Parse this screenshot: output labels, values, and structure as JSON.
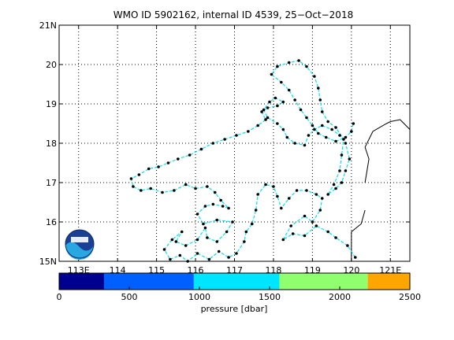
{
  "title": "WMO ID 5902162, internal ID 4539, 25−Oct−2018",
  "map": {
    "lon_range": [
      112.5,
      121.5
    ],
    "lat_range": [
      15,
      21
    ],
    "lon_ticks": [
      {
        "value": 113,
        "label": "113E"
      },
      {
        "value": 114,
        "label": "114"
      },
      {
        "value": 115,
        "label": "115"
      },
      {
        "value": 116,
        "label": "116"
      },
      {
        "value": 117,
        "label": "117"
      },
      {
        "value": 118,
        "label": "118"
      },
      {
        "value": 119,
        "label": "119"
      },
      {
        "value": 120,
        "label": "120"
      },
      {
        "value": 121,
        "label": "121E"
      }
    ],
    "lat_ticks": [
      {
        "value": 15,
        "label": "15N"
      },
      {
        "value": 16,
        "label": "16"
      },
      {
        "value": 17,
        "label": "17"
      },
      {
        "value": 18,
        "label": "18"
      },
      {
        "value": 19,
        "label": "19"
      },
      {
        "value": 20,
        "label": "20"
      },
      {
        "value": 21,
        "label": "21N"
      }
    ],
    "grid": true,
    "track_color": "#00e5ee",
    "point_color": "#000000",
    "coastline_color": "#000000",
    "coastline": [
      [
        120.35,
        17.0
      ],
      [
        120.45,
        17.6
      ],
      [
        120.35,
        17.9
      ],
      [
        120.55,
        18.3
      ],
      [
        120.9,
        18.5
      ],
      [
        121.0,
        18.55
      ],
      [
        121.25,
        18.6
      ],
      [
        121.5,
        18.35
      ]
    ],
    "coastline2": [
      [
        120.35,
        16.3
      ],
      [
        120.25,
        15.95
      ],
      [
        120.0,
        15.75
      ],
      [
        120.0,
        15.0
      ]
    ],
    "track": [
      [
        120.1,
        15.1
      ],
      [
        119.9,
        15.4
      ],
      [
        119.6,
        15.6
      ],
      [
        119.4,
        15.75
      ],
      [
        119.1,
        15.9
      ],
      [
        118.8,
        15.65
      ],
      [
        118.5,
        15.7
      ],
      [
        118.25,
        15.55
      ],
      [
        118.45,
        15.9
      ],
      [
        118.8,
        16.15
      ],
      [
        119.0,
        16.0
      ],
      [
        119.2,
        16.3
      ],
      [
        119.25,
        16.6
      ],
      [
        119.1,
        16.7
      ],
      [
        118.85,
        16.8
      ],
      [
        118.6,
        16.8
      ],
      [
        118.4,
        16.6
      ],
      [
        118.2,
        16.35
      ],
      [
        118.1,
        16.65
      ],
      [
        118.0,
        16.9
      ],
      [
        117.8,
        16.95
      ],
      [
        117.6,
        16.7
      ],
      [
        117.55,
        16.3
      ],
      [
        117.45,
        15.95
      ],
      [
        117.3,
        15.75
      ],
      [
        117.25,
        15.5
      ],
      [
        117.05,
        15.2
      ],
      [
        116.85,
        15.1
      ],
      [
        116.6,
        15.25
      ],
      [
        116.35,
        15.05
      ],
      [
        116.05,
        15.2
      ],
      [
        115.8,
        15.0
      ],
      [
        115.6,
        15.15
      ],
      [
        115.35,
        15.05
      ],
      [
        115.2,
        15.3
      ],
      [
        115.4,
        15.55
      ],
      [
        115.65,
        15.75
      ],
      [
        115.5,
        15.5
      ],
      [
        115.75,
        15.4
      ],
      [
        116.05,
        15.55
      ],
      [
        116.25,
        15.85
      ],
      [
        116.3,
        15.6
      ],
      [
        116.55,
        15.5
      ],
      [
        116.8,
        15.75
      ],
      [
        116.95,
        16.0
      ],
      [
        116.55,
        16.05
      ],
      [
        116.2,
        15.95
      ],
      [
        116.05,
        16.2
      ],
      [
        116.25,
        16.4
      ],
      [
        116.45,
        16.45
      ],
      [
        116.7,
        16.4
      ],
      [
        116.85,
        16.35
      ],
      [
        116.65,
        16.55
      ],
      [
        116.5,
        16.75
      ],
      [
        116.3,
        16.9
      ],
      [
        116.0,
        16.85
      ],
      [
        115.75,
        16.95
      ],
      [
        115.45,
        16.8
      ],
      [
        115.15,
        16.75
      ],
      [
        114.85,
        16.85
      ],
      [
        114.6,
        16.8
      ],
      [
        114.4,
        16.9
      ],
      [
        114.35,
        17.1
      ],
      [
        114.55,
        17.2
      ],
      [
        114.8,
        17.35
      ],
      [
        115.05,
        17.4
      ],
      [
        115.3,
        17.5
      ],
      [
        115.55,
        17.6
      ],
      [
        115.85,
        17.7
      ],
      [
        116.15,
        17.85
      ],
      [
        116.45,
        18.0
      ],
      [
        116.75,
        18.1
      ],
      [
        117.05,
        18.2
      ],
      [
        117.35,
        18.3
      ],
      [
        117.6,
        18.45
      ],
      [
        117.8,
        18.6
      ],
      [
        117.7,
        18.8
      ],
      [
        117.85,
        18.9
      ],
      [
        118.1,
        18.95
      ],
      [
        118.25,
        19.05
      ],
      [
        118.05,
        19.15
      ],
      [
        117.9,
        19.05
      ],
      [
        117.75,
        18.85
      ],
      [
        117.85,
        18.65
      ],
      [
        118.1,
        18.5
      ],
      [
        118.25,
        18.35
      ],
      [
        118.35,
        18.15
      ],
      [
        118.55,
        18.0
      ],
      [
        118.8,
        17.95
      ],
      [
        118.9,
        18.2
      ],
      [
        119.05,
        18.35
      ],
      [
        119.25,
        18.45
      ],
      [
        119.5,
        18.35
      ],
      [
        119.7,
        18.2
      ],
      [
        119.85,
        18.0
      ],
      [
        119.95,
        17.6
      ],
      [
        119.85,
        17.3
      ],
      [
        119.75,
        17.0
      ],
      [
        119.6,
        16.85
      ],
      [
        119.4,
        16.7
      ],
      [
        119.55,
        16.95
      ],
      [
        119.7,
        17.3
      ],
      [
        119.75,
        17.7
      ],
      [
        119.8,
        18.1
      ],
      [
        119.6,
        18.4
      ],
      [
        119.4,
        18.55
      ],
      [
        119.25,
        18.8
      ],
      [
        119.2,
        19.1
      ],
      [
        119.15,
        19.4
      ],
      [
        119.05,
        19.7
      ],
      [
        118.85,
        19.95
      ],
      [
        118.65,
        20.1
      ],
      [
        118.4,
        20.05
      ],
      [
        118.1,
        19.95
      ],
      [
        117.95,
        19.75
      ],
      [
        118.2,
        19.55
      ],
      [
        118.4,
        19.35
      ],
      [
        118.55,
        19.1
      ],
      [
        118.7,
        18.85
      ],
      [
        118.85,
        18.65
      ],
      [
        119.0,
        18.45
      ],
      [
        119.15,
        18.25
      ],
      [
        119.35,
        18.15
      ],
      [
        119.6,
        18.05
      ],
      [
        119.85,
        18.15
      ],
      [
        120.0,
        18.3
      ],
      [
        120.05,
        18.5
      ]
    ],
    "noaa_logo": "noaa-logo"
  },
  "colorbar": {
    "label": "pressure [dbar]",
    "ticks": [
      {
        "value": 0,
        "label": "0"
      },
      {
        "value": 500,
        "label": "500"
      },
      {
        "value": 1000,
        "label": "1000"
      },
      {
        "value": 1500,
        "label": "1500"
      },
      {
        "value": 2000,
        "label": "2000"
      },
      {
        "value": 2500,
        "label": "2500"
      }
    ],
    "range": [
      0,
      2500
    ],
    "segments": [
      {
        "from": 0,
        "to": 320,
        "color": "#00008f"
      },
      {
        "from": 320,
        "to": 960,
        "color": "#0060ff"
      },
      {
        "from": 960,
        "to": 1570,
        "color": "#00e5ff"
      },
      {
        "from": 1570,
        "to": 2200,
        "color": "#8fff70"
      },
      {
        "from": 2200,
        "to": 2500,
        "color": "#ffa500"
      }
    ]
  }
}
